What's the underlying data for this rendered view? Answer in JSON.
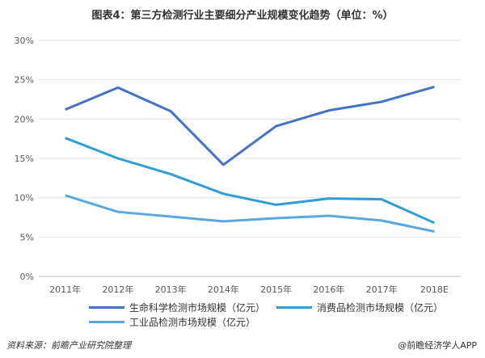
{
  "chart_data": {
    "type": "line",
    "title": "图表4：第三方检测行业主要细分产业规模变化趋势（单位：%）",
    "categories": [
      "2011年",
      "2012年",
      "2013年",
      "2014年",
      "2015年",
      "2016年",
      "2017年",
      "2018E"
    ],
    "y_ticks": [
      "0%",
      "5%",
      "10%",
      "15%",
      "20%",
      "25%",
      "30%"
    ],
    "ylim": [
      0,
      30
    ],
    "grid": true,
    "legend_position": "bottom",
    "series": [
      {
        "name": "生命科学检测市场规模（亿元）",
        "color": "#4472c4",
        "values": [
          21.2,
          24.0,
          21.0,
          14.2,
          19.1,
          21.1,
          22.2,
          24.1
        ]
      },
      {
        "name": "消费品检测市场规模（亿元）",
        "color": "#2e9dd6",
        "values": [
          17.6,
          15.0,
          13.0,
          10.5,
          9.1,
          9.9,
          9.8,
          6.8
        ]
      },
      {
        "name": "工业品检测市场规模（亿元）",
        "color": "#5aa8e0",
        "values": [
          10.3,
          8.2,
          7.6,
          7.0,
          7.4,
          7.7,
          7.1,
          5.7
        ]
      }
    ]
  },
  "footer": {
    "source": "资料来源：前瞻产业研究院整理",
    "brand": "@前瞻经济学人APP"
  }
}
